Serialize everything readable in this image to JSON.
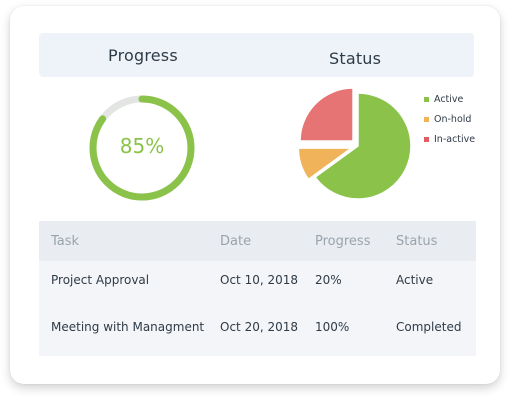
{
  "progress": {
    "title": "Progress",
    "value_label": "85%",
    "percent": 85,
    "color": "#8bc34a",
    "track_color": "#e3e5e2"
  },
  "status": {
    "title": "Status",
    "legend": [
      {
        "label": "Active",
        "color": "#8bc34a"
      },
      {
        "label": "On-hold",
        "color": "#f0b35a"
      },
      {
        "label": "In-active",
        "color": "#e35c64"
      }
    ]
  },
  "chart_data": {
    "type": "pie",
    "title": "Status",
    "categories": [
      "Active",
      "On-hold",
      "In-active"
    ],
    "values": [
      65,
      10,
      25
    ],
    "colors": [
      "#8bc34a",
      "#f0b35a",
      "#e77474"
    ]
  },
  "table": {
    "headers": [
      "Task",
      "Date",
      "Progress",
      "Status"
    ],
    "rows": [
      [
        "Project Approval",
        "Oct 10, 2018",
        "20%",
        "Active"
      ],
      [
        "Meeting with Managment",
        "Oct 20, 2018",
        "100%",
        "Completed"
      ]
    ]
  }
}
